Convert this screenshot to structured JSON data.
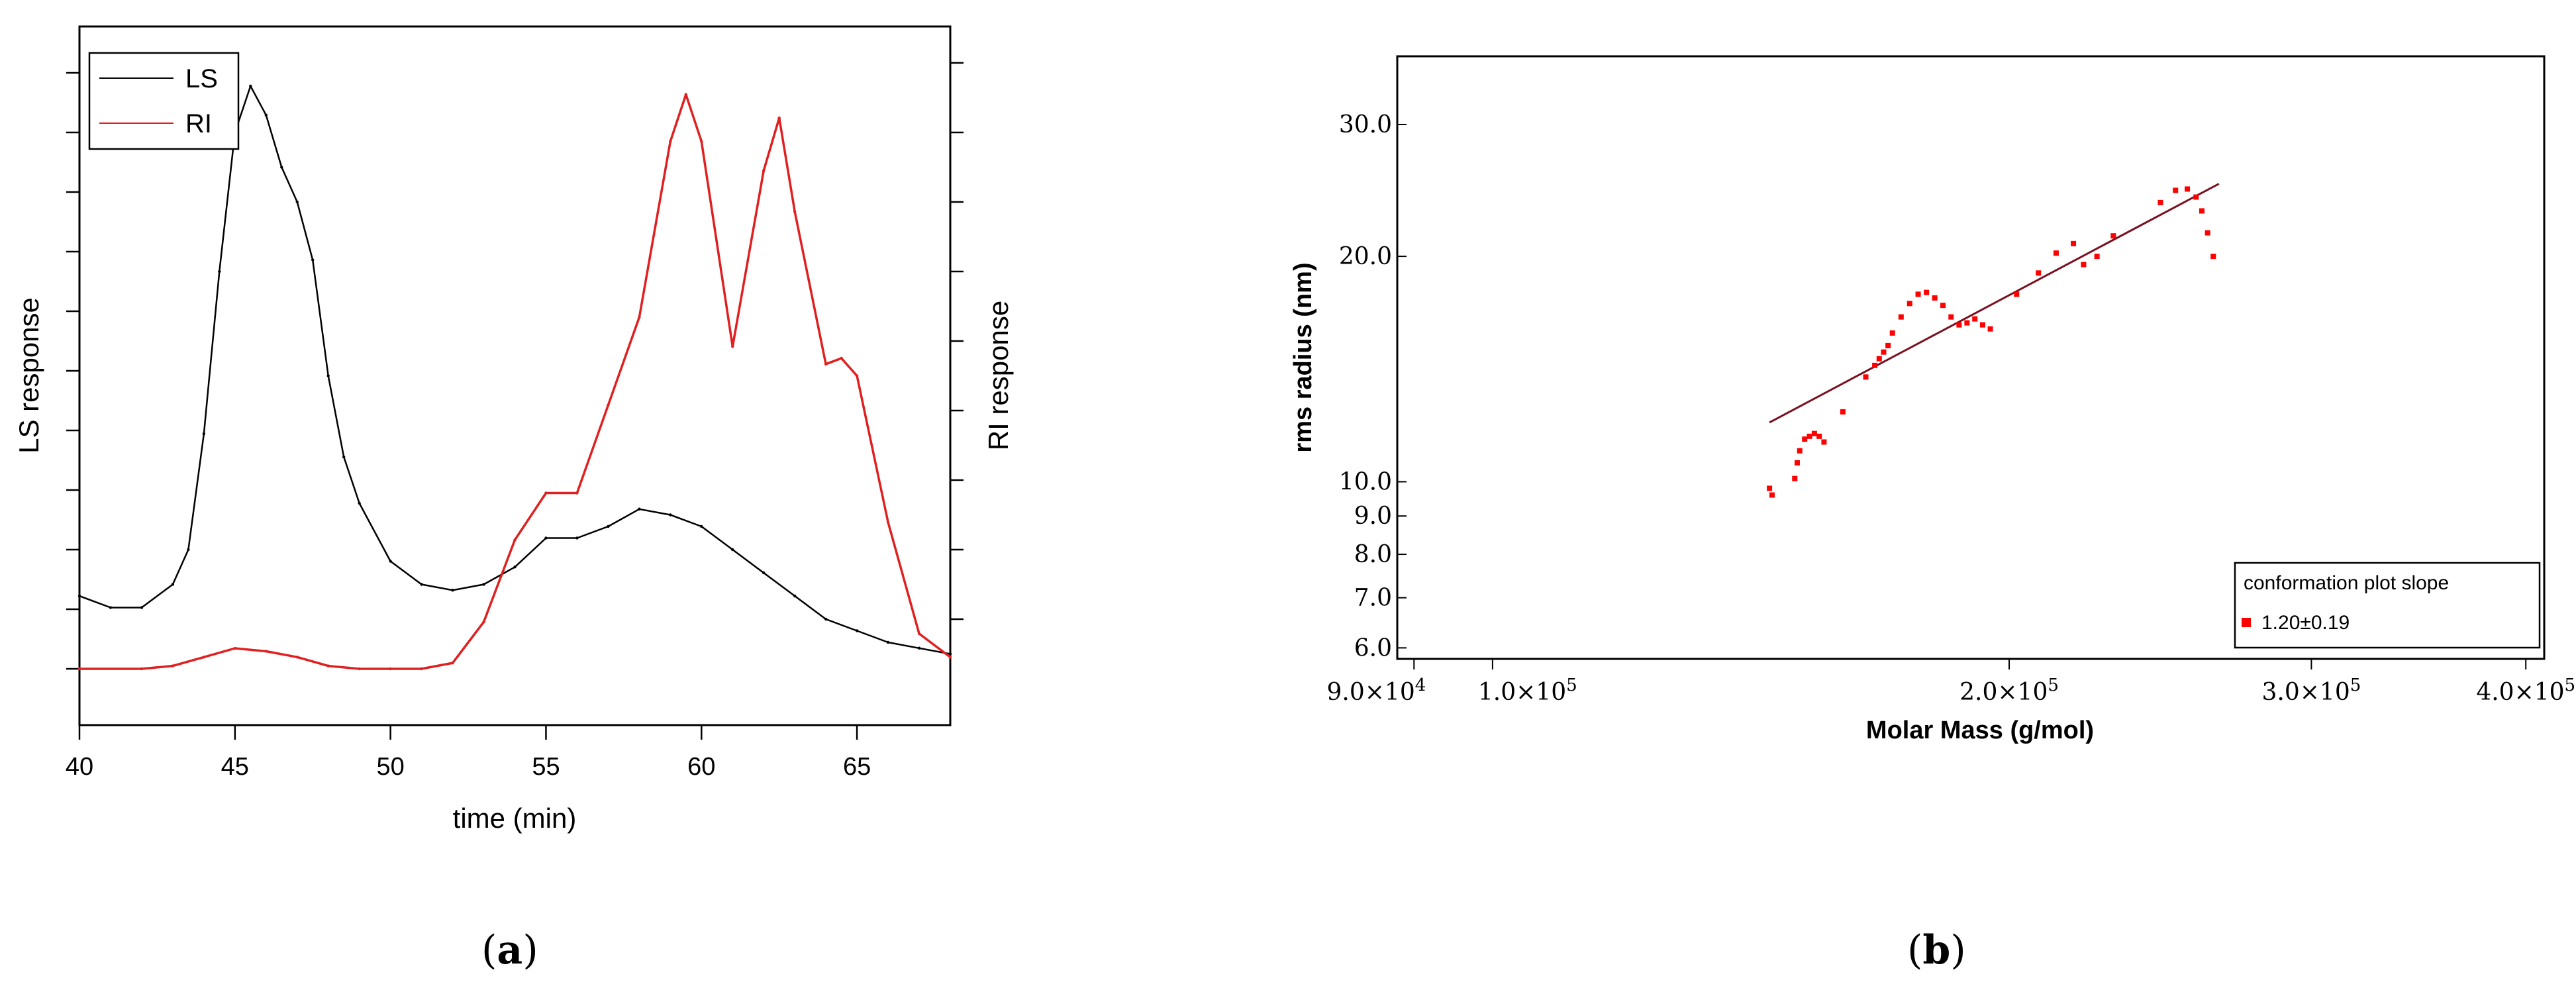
{
  "chart_data": [
    {
      "type": "line",
      "panel_label": "a",
      "xlabel": "time (min)",
      "ylabel_left": "LS response",
      "ylabel_right": "RI response",
      "xlim": [
        40,
        68
      ],
      "xticks": [
        40,
        45,
        50,
        55,
        60,
        65
      ],
      "legend_position": "top-left",
      "series": [
        {
          "name": "LS",
          "color": "#000000",
          "x": [
            40,
            41,
            42,
            43,
            43.5,
            44,
            44.5,
            45,
            45.5,
            46,
            46.5,
            47,
            47.5,
            48,
            48.5,
            49,
            50,
            51,
            52,
            53,
            54,
            55,
            56,
            57,
            58,
            59,
            60,
            61,
            62,
            63,
            64,
            65,
            66,
            67,
            68
          ],
          "y": [
            0.12,
            0.1,
            0.1,
            0.14,
            0.2,
            0.4,
            0.68,
            0.92,
            1.0,
            0.95,
            0.86,
            0.8,
            0.7,
            0.5,
            0.36,
            0.28,
            0.18,
            0.14,
            0.13,
            0.14,
            0.17,
            0.22,
            0.22,
            0.24,
            0.27,
            0.26,
            0.24,
            0.2,
            0.16,
            0.12,
            0.08,
            0.06,
            0.04,
            0.03,
            0.02
          ]
        },
        {
          "name": "RI",
          "color": "#e02020",
          "x": [
            40,
            42,
            43,
            44,
            45,
            46,
            47,
            48,
            49,
            50,
            51,
            52,
            53,
            54,
            55,
            56,
            57,
            58,
            59,
            59.5,
            60,
            61,
            62,
            62.5,
            63,
            64,
            64.5,
            65,
            66,
            67,
            68
          ],
          "y": [
            0.0,
            0.0,
            0.005,
            0.02,
            0.035,
            0.03,
            0.02,
            0.005,
            0.0,
            0.0,
            0.0,
            0.01,
            0.08,
            0.22,
            0.3,
            0.3,
            0.45,
            0.6,
            0.9,
            0.98,
            0.9,
            0.55,
            0.85,
            0.94,
            0.78,
            0.52,
            0.53,
            0.5,
            0.25,
            0.06,
            0.02
          ]
        }
      ]
    },
    {
      "type": "scatter",
      "panel_label": "b",
      "xlabel": "Molar Mass (g/mol)",
      "ylabel": "rms radius (nm)",
      "x_scale": "log",
      "y_scale": "log",
      "xlim": [
        88000,
        410000
      ],
      "ylim": [
        5.8,
        37
      ],
      "x_tick_labels": [
        {
          "mantissa": "9.0",
          "exp": "4",
          "value": 90000
        },
        {
          "mantissa": "1.0",
          "exp": "5",
          "value": 100000
        },
        {
          "mantissa": "2.0",
          "exp": "5",
          "value": 200000
        },
        {
          "mantissa": "3.0",
          "exp": "5",
          "value": 300000
        },
        {
          "mantissa": "4.0",
          "exp": "5",
          "value": 400000
        }
      ],
      "y_tick_labels": [
        {
          "label": "6.0",
          "value": 6.0
        },
        {
          "label": "7.0",
          "value": 7.0
        },
        {
          "label": "8.0",
          "value": 8.0
        },
        {
          "label": "9.0",
          "value": 9.0
        },
        {
          "label": "10.0",
          "value": 10.0
        },
        {
          "label": "20.0",
          "value": 20.0
        },
        {
          "label": "30.0",
          "value": 30.0
        }
      ],
      "legend_title": "conformation plot slope",
      "legend_entry": "1.20±0.19",
      "fit_line": {
        "x": [
          145000,
          265000
        ],
        "y": [
          12.0,
          25.0
        ],
        "color": "#7a1020"
      },
      "points": {
        "color": "#ff0000",
        "x": [
          145000,
          145500,
          150000,
          150500,
          151000,
          152000,
          153000,
          154000,
          155000,
          156000,
          160000,
          165000,
          167000,
          168000,
          169000,
          170000,
          171000,
          173000,
          175000,
          177000,
          179000,
          181000,
          183000,
          185000,
          187000,
          189000,
          191000,
          193000,
          195000,
          202000,
          208000,
          213000,
          218000,
          221000,
          225000,
          230000,
          245000,
          250000,
          254000,
          257000,
          259000,
          261000,
          263000
        ],
        "y": [
          9.8,
          9.6,
          10.1,
          10.6,
          11.0,
          11.4,
          11.5,
          11.6,
          11.5,
          11.3,
          12.4,
          13.8,
          14.3,
          14.6,
          14.9,
          15.2,
          15.8,
          16.6,
          17.3,
          17.8,
          17.9,
          17.6,
          17.2,
          16.6,
          16.2,
          16.3,
          16.5,
          16.2,
          16.0,
          17.8,
          19.0,
          20.2,
          20.8,
          19.5,
          20.0,
          21.3,
          23.6,
          24.5,
          24.6,
          24.0,
          23.0,
          21.5,
          20.0
        ]
      }
    }
  ]
}
